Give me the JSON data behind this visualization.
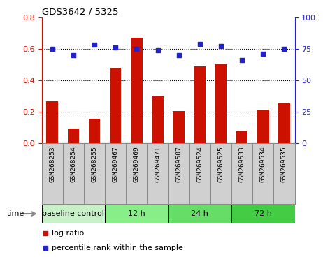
{
  "title": "GDS3642 / 5325",
  "categories": [
    "GSM268253",
    "GSM268254",
    "GSM268255",
    "GSM269467",
    "GSM269469",
    "GSM269471",
    "GSM269507",
    "GSM269524",
    "GSM269525",
    "GSM269533",
    "GSM269534",
    "GSM269535"
  ],
  "log_ratio": [
    0.265,
    0.095,
    0.155,
    0.48,
    0.67,
    0.3,
    0.205,
    0.49,
    0.505,
    0.075,
    0.215,
    0.255
  ],
  "percentile_rank": [
    75,
    70,
    78,
    76,
    75,
    74,
    70,
    79,
    77,
    66,
    71,
    75
  ],
  "bar_color": "#cc1100",
  "dot_color": "#2222cc",
  "ylim_left": [
    0,
    0.8
  ],
  "ylim_right": [
    0,
    100
  ],
  "yticks_left": [
    0,
    0.2,
    0.4,
    0.6,
    0.8
  ],
  "yticks_right": [
    0,
    25,
    50,
    75,
    100
  ],
  "dotted_lines": [
    0.2,
    0.4,
    0.6
  ],
  "groups": [
    {
      "label": "baseline control",
      "start": 0,
      "end": 3,
      "color": "#c8f0c8"
    },
    {
      "label": "12 h",
      "start": 3,
      "end": 6,
      "color": "#88ee88"
    },
    {
      "label": "24 h",
      "start": 6,
      "end": 9,
      "color": "#66dd66"
    },
    {
      "label": "72 h",
      "start": 9,
      "end": 12,
      "color": "#44cc44"
    }
  ],
  "time_label": "time",
  "legend_log_ratio": "log ratio",
  "legend_percentile": "percentile rank within the sample",
  "cell_bg": "#d0d0d0",
  "cell_border": "#888888"
}
